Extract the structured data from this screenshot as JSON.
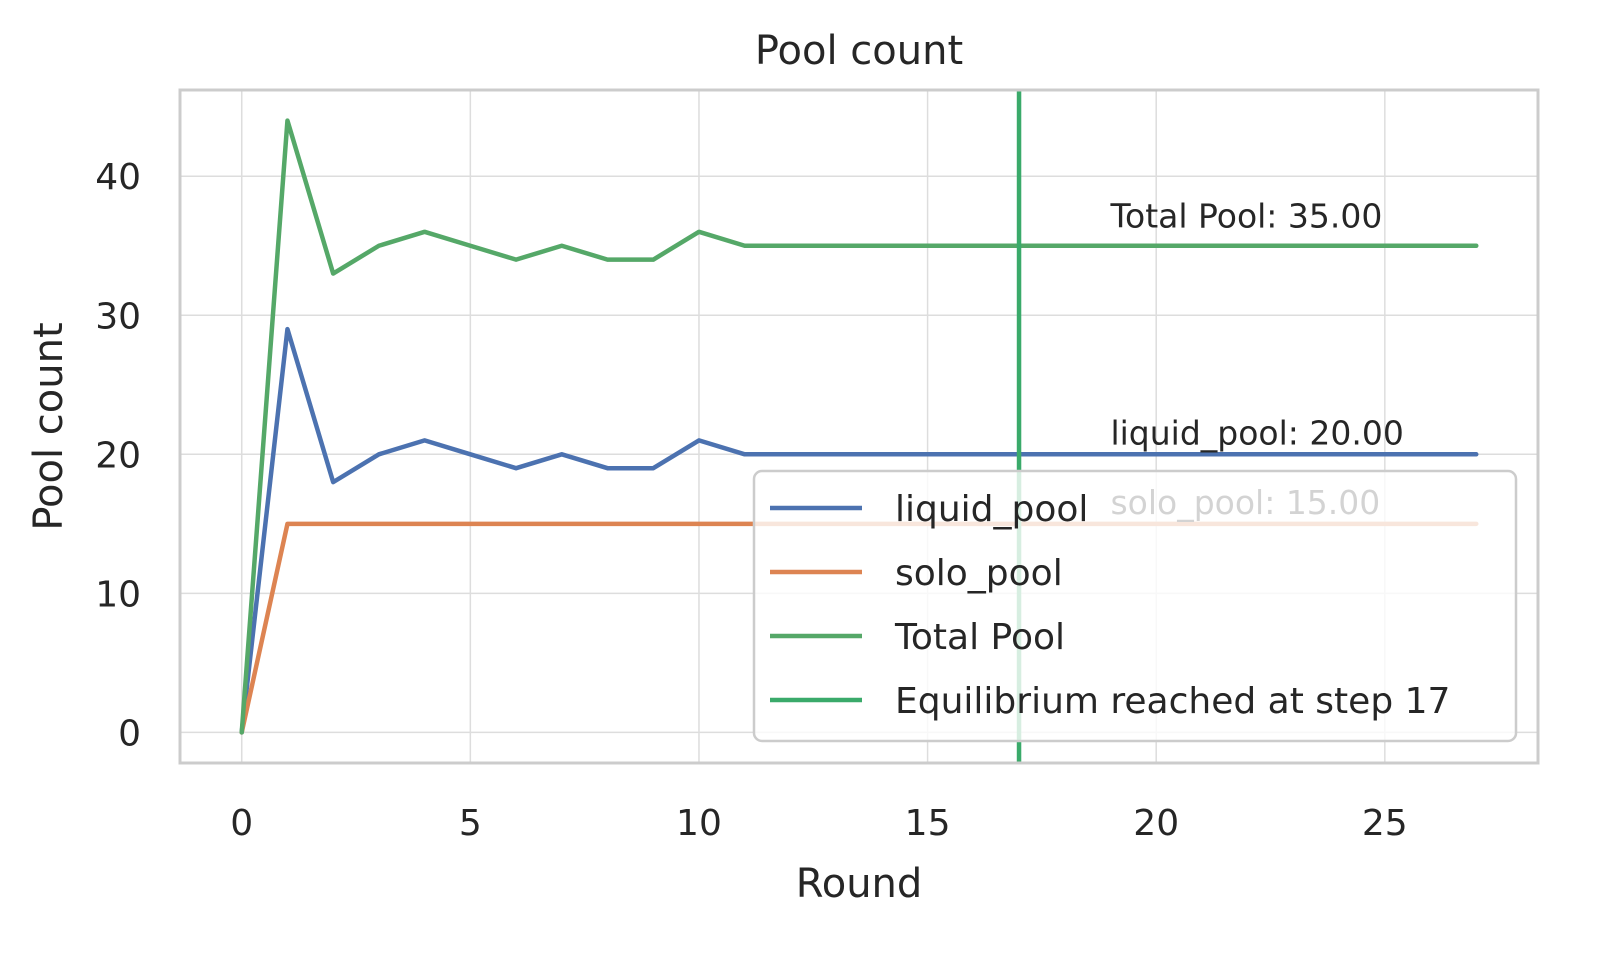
{
  "chart_data": {
    "type": "line",
    "title": "Pool count",
    "xlabel": "Round",
    "ylabel": "Pool count",
    "xlim": [
      -1.35,
      28.35
    ],
    "ylim": [
      -2.2,
      46.2
    ],
    "xticks": [
      0,
      5,
      10,
      15,
      20,
      25
    ],
    "yticks": [
      0,
      10,
      20,
      30,
      40
    ],
    "grid": true,
    "legend_position": "lower-right",
    "x": [
      0,
      1,
      2,
      3,
      4,
      5,
      6,
      7,
      8,
      9,
      10,
      11,
      12,
      13,
      14,
      15,
      16,
      17,
      18,
      19,
      20,
      21,
      22,
      23,
      24,
      25,
      26,
      27
    ],
    "series": [
      {
        "name": "liquid_pool",
        "color": "#4c72b0",
        "values": [
          0,
          29,
          18,
          20,
          21,
          20,
          19,
          20,
          19,
          19,
          21,
          20,
          20,
          20,
          20,
          20,
          20,
          20,
          20,
          20,
          20,
          20,
          20,
          20,
          20,
          20,
          20,
          20
        ]
      },
      {
        "name": "solo_pool",
        "color": "#dd8452",
        "values": [
          0,
          15,
          15,
          15,
          15,
          15,
          15,
          15,
          15,
          15,
          15,
          15,
          15,
          15,
          15,
          15,
          15,
          15,
          15,
          15,
          15,
          15,
          15,
          15,
          15,
          15,
          15,
          15
        ]
      },
      {
        "name": "Total Pool",
        "color": "#55a868",
        "values": [
          0,
          44,
          33,
          35,
          36,
          35,
          34,
          35,
          34,
          34,
          36,
          35,
          35,
          35,
          35,
          35,
          35,
          35,
          35,
          35,
          35,
          35,
          35,
          35,
          35,
          35,
          35,
          35
        ]
      }
    ],
    "vline": {
      "x": 17,
      "color": "#3aaa6a",
      "label": "Equilibrium reached at step 17"
    },
    "annotations": [
      {
        "text": "Total Pool: 35.00",
        "x": 19,
        "y": 36.3
      },
      {
        "text": "liquid_pool: 20.00",
        "x": 19,
        "y": 20.7
      },
      {
        "text": "solo_pool: 15.00",
        "x": 19,
        "y": 15.7
      }
    ]
  }
}
